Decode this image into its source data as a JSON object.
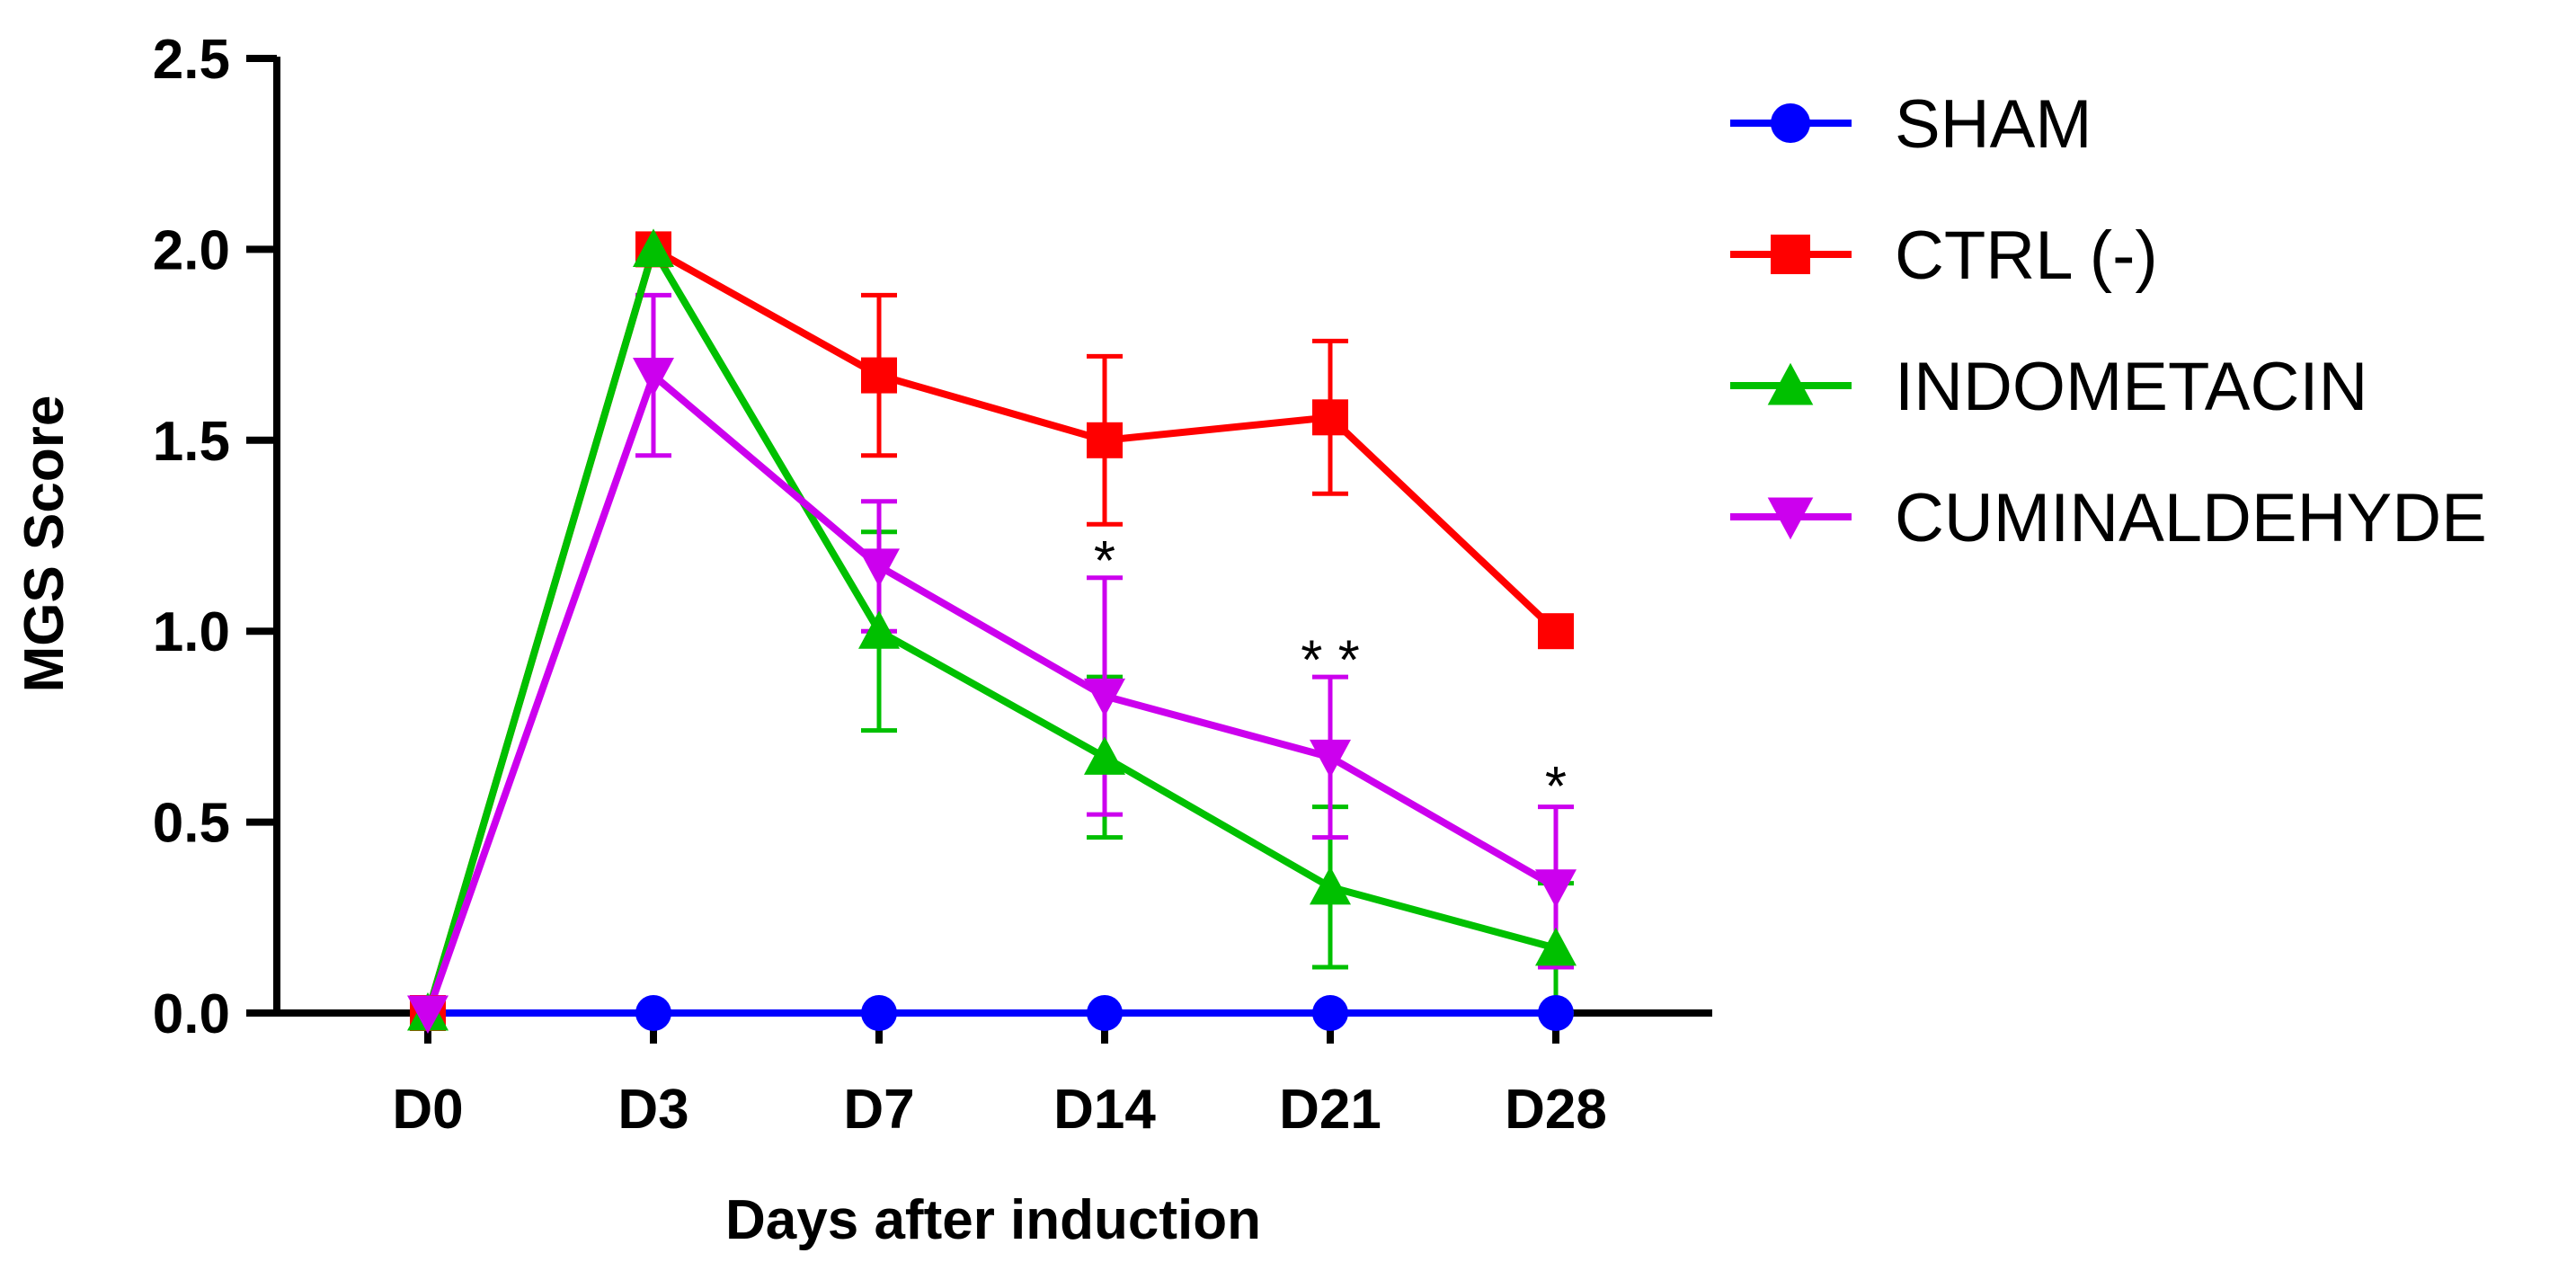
{
  "chart_data": {
    "type": "line",
    "title": "",
    "xlabel": "Days after induction",
    "ylabel": "MGS Score",
    "ylim": [
      0,
      2.5
    ],
    "yticks": [
      0.0,
      0.5,
      1.0,
      1.5,
      2.0,
      2.5
    ],
    "ytick_labels": [
      "0.0",
      "0.5",
      "1.0",
      "1.5",
      "2.0",
      "2.5"
    ],
    "categories": [
      "D0",
      "D3",
      "D7",
      "D14",
      "D21",
      "D28"
    ],
    "grid": false,
    "legend_position": "right",
    "series": [
      {
        "name": "SHAM",
        "color": "#0000ff",
        "marker": "circle",
        "values": [
          0,
          0,
          0,
          0,
          0,
          0
        ],
        "errors": [
          0,
          0,
          0,
          0,
          0,
          0
        ]
      },
      {
        "name": "CTRL (-)",
        "color": "#ff0000",
        "marker": "square",
        "values": [
          0,
          2.0,
          1.67,
          1.5,
          1.56,
          1.0
        ],
        "errors": [
          0,
          0,
          0.21,
          0.22,
          0.2,
          0
        ]
      },
      {
        "name": "INDOMETACIN",
        "color": "#00c000",
        "marker": "triangle-up",
        "values": [
          0,
          2.0,
          1.0,
          0.67,
          0.33,
          0.17
        ],
        "errors": [
          0,
          0,
          0.26,
          0.21,
          0.21,
          0.17
        ]
      },
      {
        "name": "CUMINALDEHYDE",
        "color": "#cc00ee",
        "marker": "triangle-down",
        "values": [
          0,
          1.67,
          1.17,
          0.83,
          0.67,
          0.33
        ],
        "errors": [
          0,
          0.21,
          0.17,
          0.31,
          0.21,
          0.21
        ]
      }
    ],
    "annotations": [
      {
        "category": "D14",
        "text": "*",
        "y": 1.2
      },
      {
        "category": "D21",
        "text": "* *",
        "y": 0.94
      },
      {
        "category": "D28",
        "text": "*",
        "y": 0.61
      }
    ]
  }
}
